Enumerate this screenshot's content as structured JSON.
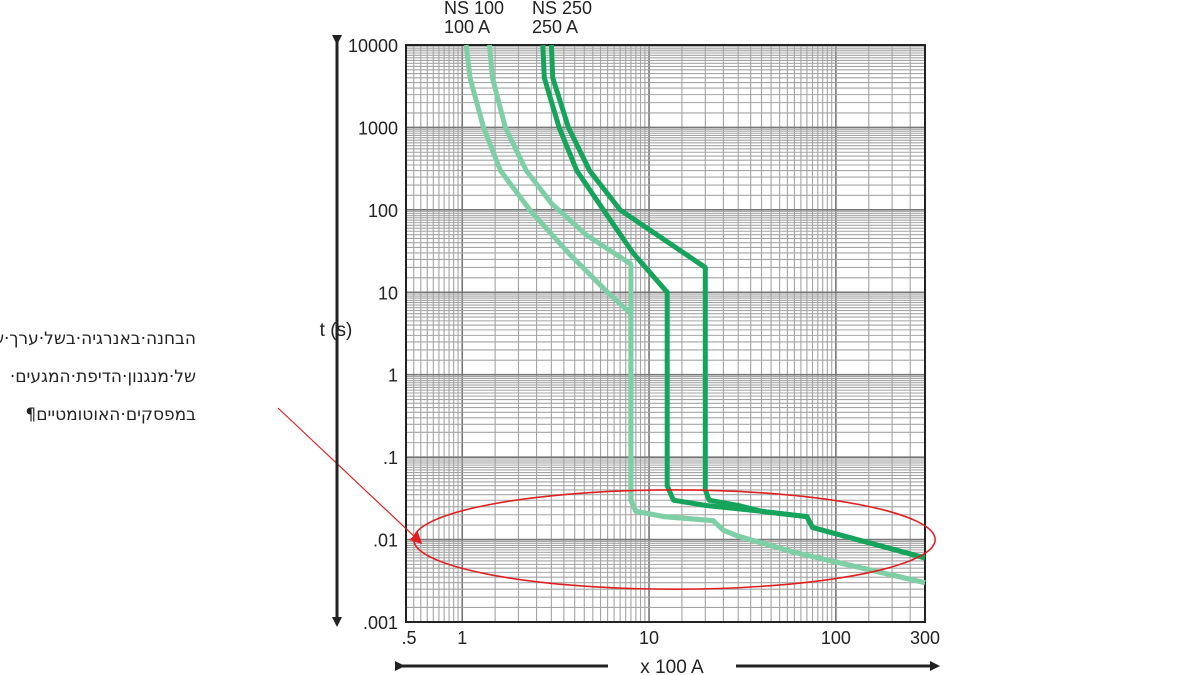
{
  "chart_data": {
    "type": "line",
    "x_scale": "log",
    "y_scale": "log",
    "xlim": [
      0.5,
      300
    ],
    "ylim": [
      0.001,
      10000
    ],
    "x_ticks": [
      0.5,
      1,
      10,
      100,
      300
    ],
    "x_tick_labels": [
      ".5",
      "1",
      "10",
      "100",
      "300"
    ],
    "y_ticks": [
      0.001,
      0.01,
      0.1,
      1,
      10,
      100,
      1000,
      10000
    ],
    "y_tick_labels": [
      ".001",
      ".01",
      ".1",
      "1",
      "10",
      "100",
      "1000",
      "10000"
    ],
    "xlabel": "x 100 A",
    "ylabel": "t (s)",
    "grid": true,
    "series_labels": [
      {
        "line1": "NS 100",
        "line2": "100 A"
      },
      {
        "line1": "NS 250",
        "line2": "250 A"
      }
    ],
    "series": [
      {
        "name": "NS 100",
        "color": "#7fcfa6",
        "curves": [
          {
            "points": [
              [
                1.05,
                10000
              ],
              [
                1.1,
                4000
              ],
              [
                1.3,
                1000
              ],
              [
                1.6,
                300
              ],
              [
                2.3,
                100
              ],
              [
                3.7,
                30
              ],
              [
                6.0,
                10
              ],
              [
                8.0,
                5.5
              ],
              [
                8.0,
                0.03
              ],
              [
                8.5,
                0.022
              ],
              [
                12,
                0.019
              ],
              [
                22,
                0.017
              ],
              [
                25,
                0.013
              ],
              [
                30,
                0.011
              ],
              [
                60,
                0.007
              ],
              [
                300,
                0.003
              ]
            ]
          },
          {
            "points": [
              [
                1.4,
                10000
              ],
              [
                1.45,
                4000
              ],
              [
                1.7,
                1000
              ],
              [
                2.2,
                300
              ],
              [
                3.0,
                120
              ],
              [
                4.6,
                50
              ],
              [
                8.0,
                22
              ],
              [
                8.0,
                0.03
              ],
              [
                8.5,
                0.022
              ],
              [
                12,
                0.019
              ],
              [
                22,
                0.017
              ],
              [
                25,
                0.013
              ],
              [
                30,
                0.011
              ],
              [
                60,
                0.007
              ],
              [
                300,
                0.003
              ]
            ]
          }
        ]
      },
      {
        "name": "NS 250",
        "color": "#16a35c",
        "curves": [
          {
            "points": [
              [
                2.7,
                10000
              ],
              [
                2.75,
                4000
              ],
              [
                3.3,
                1000
              ],
              [
                4.1,
                300
              ],
              [
                5.7,
                100
              ],
              [
                8.2,
                30
              ],
              [
                12.5,
                10
              ],
              [
                12.5,
                0.045
              ],
              [
                13.5,
                0.03
              ],
              [
                20,
                0.026
              ],
              [
                40,
                0.022
              ],
              [
                70,
                0.019
              ],
              [
                75,
                0.014
              ],
              [
                300,
                0.006
              ]
            ]
          },
          {
            "points": [
              [
                3.0,
                10000
              ],
              [
                3.05,
                4000
              ],
              [
                3.7,
                1000
              ],
              [
                4.8,
                300
              ],
              [
                7.0,
                100
              ],
              [
                11,
                50
              ],
              [
                20,
                20
              ],
              [
                20,
                0.04
              ],
              [
                21,
                0.03
              ],
              [
                30,
                0.026
              ],
              [
                40,
                0.022
              ],
              [
                70,
                0.019
              ],
              [
                75,
                0.014
              ],
              [
                300,
                0.006
              ]
            ]
          }
        ]
      }
    ],
    "annotation": {
      "lines": [
        "הבחנה·באנרגיה·בשל·ערך·שונה·",
        "של·מנגנון·הדיפת·המגעים·",
        "במפסקים·האוטומטיים¶"
      ],
      "target_x": 0.6,
      "target_y": 0.01,
      "ellipse_color": "#e02020",
      "ellipse_center": [
        20,
        0.008
      ],
      "ellipse_x_range": [
        0.55,
        340
      ],
      "ellipse_y_range": [
        0.0025,
        0.04
      ]
    }
  }
}
